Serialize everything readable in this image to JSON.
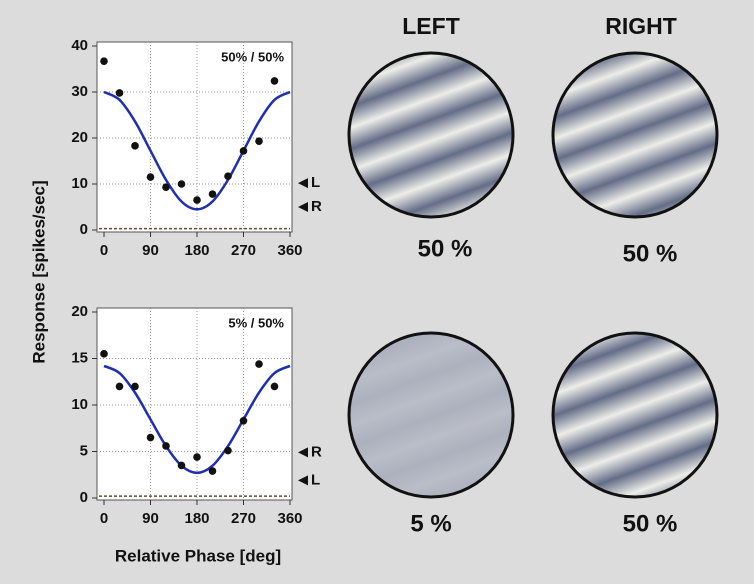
{
  "chart_data": [
    {
      "type": "scatter",
      "annotation": "50% / 50%",
      "xlim": [
        0,
        360
      ],
      "xticks": [
        0,
        90,
        180,
        270,
        360
      ],
      "ylim": [
        0,
        40
      ],
      "yticks": [
        0,
        10,
        20,
        30,
        40
      ],
      "grid": true,
      "points": {
        "x": [
          0,
          30,
          60,
          90,
          120,
          150,
          180,
          210,
          240,
          270,
          300,
          330
        ],
        "y": [
          36.7,
          29.8,
          18.3,
          11.5,
          9.3,
          10,
          6.5,
          7.8,
          11.7,
          17.2,
          19.3,
          32.4
        ],
        "color": "#111111"
      },
      "fit": {
        "x": [
          0,
          30,
          60,
          90,
          120,
          150,
          180,
          210,
          240,
          270,
          300,
          330,
          360
        ],
        "y": [
          30,
          28.3,
          23.6,
          17.25,
          10.9,
          6.2,
          4.5,
          6.2,
          10.9,
          17.25,
          23.6,
          28.3,
          30
        ],
        "color": "#1f2fb0"
      },
      "baseline": 0.3,
      "markers": [
        {
          "label": "L",
          "value": 10.2
        },
        {
          "label": "R",
          "value": 5
        }
      ]
    },
    {
      "type": "scatter",
      "annotation": "5% / 50%",
      "xlim": [
        0,
        360
      ],
      "xticks": [
        0,
        90,
        180,
        270,
        360
      ],
      "ylim": [
        0,
        20
      ],
      "yticks": [
        0,
        5,
        10,
        15,
        20
      ],
      "grid": true,
      "points": {
        "x": [
          0,
          30,
          60,
          90,
          120,
          150,
          180,
          210,
          240,
          270,
          300,
          330
        ],
        "y": [
          15.5,
          12,
          12,
          6.5,
          5.6,
          3.5,
          4.4,
          2.9,
          5.1,
          8.3,
          14.4,
          12
        ],
        "color": "#111111"
      },
      "fit": {
        "x": [
          0,
          30,
          60,
          90,
          120,
          150,
          180,
          210,
          240,
          270,
          300,
          330,
          360
        ],
        "y": [
          14.2,
          13.43,
          11.33,
          8.45,
          5.58,
          3.47,
          2.7,
          3.47,
          5.58,
          8.45,
          11.33,
          13.43,
          14.2
        ],
        "color": "#1f2fb0"
      },
      "baseline": 0.2,
      "markers": [
        {
          "label": "R",
          "value": 4.9
        },
        {
          "label": "L",
          "value": 1.9
        }
      ]
    }
  ],
  "y_label": "Response [spikes/sec]",
  "x_label": "Relative Phase [deg]",
  "eye_headers": [
    "LEFT",
    "RIGHT"
  ],
  "stimuli": [
    [
      {
        "contrast": 50,
        "contrast_label": "50 %"
      },
      {
        "contrast": 50,
        "contrast_label": "50 %"
      }
    ],
    [
      {
        "contrast": 5,
        "contrast_label": "5 %"
      },
      {
        "contrast": 50,
        "contrast_label": "50 %"
      }
    ]
  ]
}
